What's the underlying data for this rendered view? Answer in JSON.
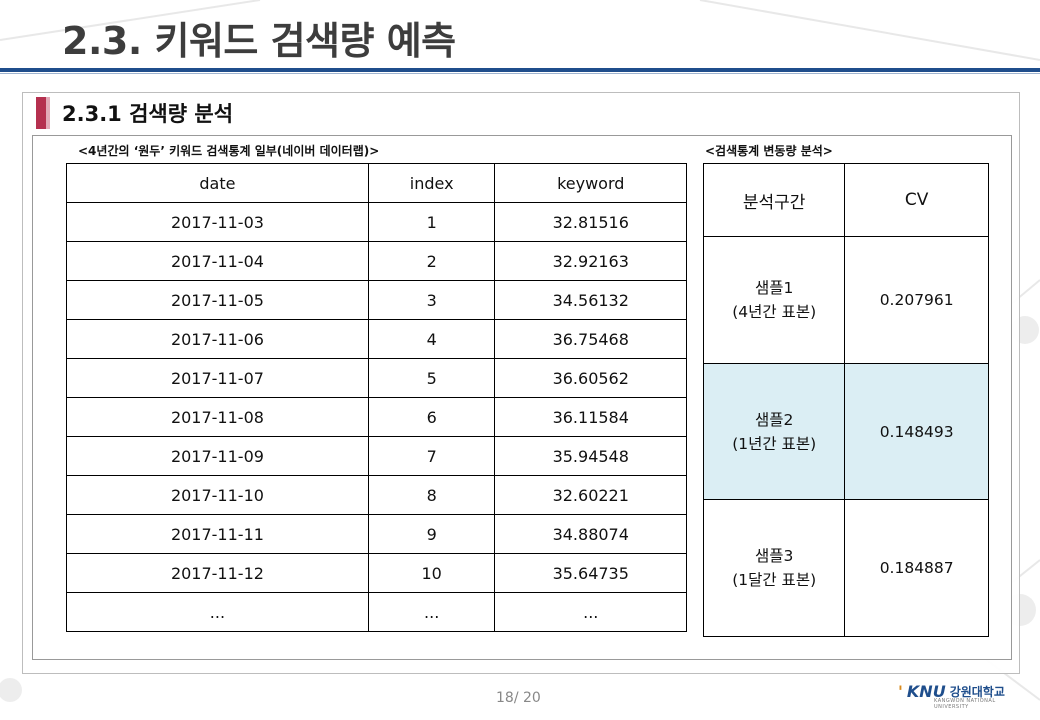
{
  "title": "2.3. 키워드 검색량 예측",
  "section_title": "2.3.1 검색량 분석",
  "left_caption": "<4년간의 ‘원두’ 키워드 검색통계 일부(네이버 데이터랩)>",
  "right_caption": "<검색통계 변동량 분석>",
  "data_table": {
    "headers": [
      "date",
      "index",
      "keyword"
    ],
    "rows": [
      [
        "2017-11-03",
        "1",
        "32.81516"
      ],
      [
        "2017-11-04",
        "2",
        "32.92163"
      ],
      [
        "2017-11-05",
        "3",
        "34.56132"
      ],
      [
        "2017-11-06",
        "4",
        "36.75468"
      ],
      [
        "2017-11-07",
        "5",
        "36.60562"
      ],
      [
        "2017-11-08",
        "6",
        "36.11584"
      ],
      [
        "2017-11-09",
        "7",
        "35.94548"
      ],
      [
        "2017-11-10",
        "8",
        "32.60221"
      ],
      [
        "2017-11-11",
        "9",
        "34.88074"
      ],
      [
        "2017-11-12",
        "10",
        "35.64735"
      ],
      [
        "...",
        "...",
        "..."
      ]
    ]
  },
  "cv_table": {
    "headers": [
      "분석구간",
      "CV"
    ],
    "rows": [
      {
        "sample": "샘플1",
        "range": "(4년간 표본)",
        "cv": "0.207961"
      },
      {
        "sample": "샘플2",
        "range": "(1년간 표본)",
        "cv": "0.148493"
      },
      {
        "sample": "샘플3",
        "range": "(1달간 표본)",
        "cv": "0.184887"
      }
    ]
  },
  "footer": {
    "page": "18/ 20",
    "logo_mark": "'",
    "logo_knu": "KNU",
    "logo_name": "강원대학교",
    "logo_sub": "KANGWON NATIONAL UNIVERSITY"
  },
  "colors": {
    "accent_blue": "#1f4e8c",
    "marker_red": "#b5304f",
    "highlight_row": "#dbeef4"
  }
}
